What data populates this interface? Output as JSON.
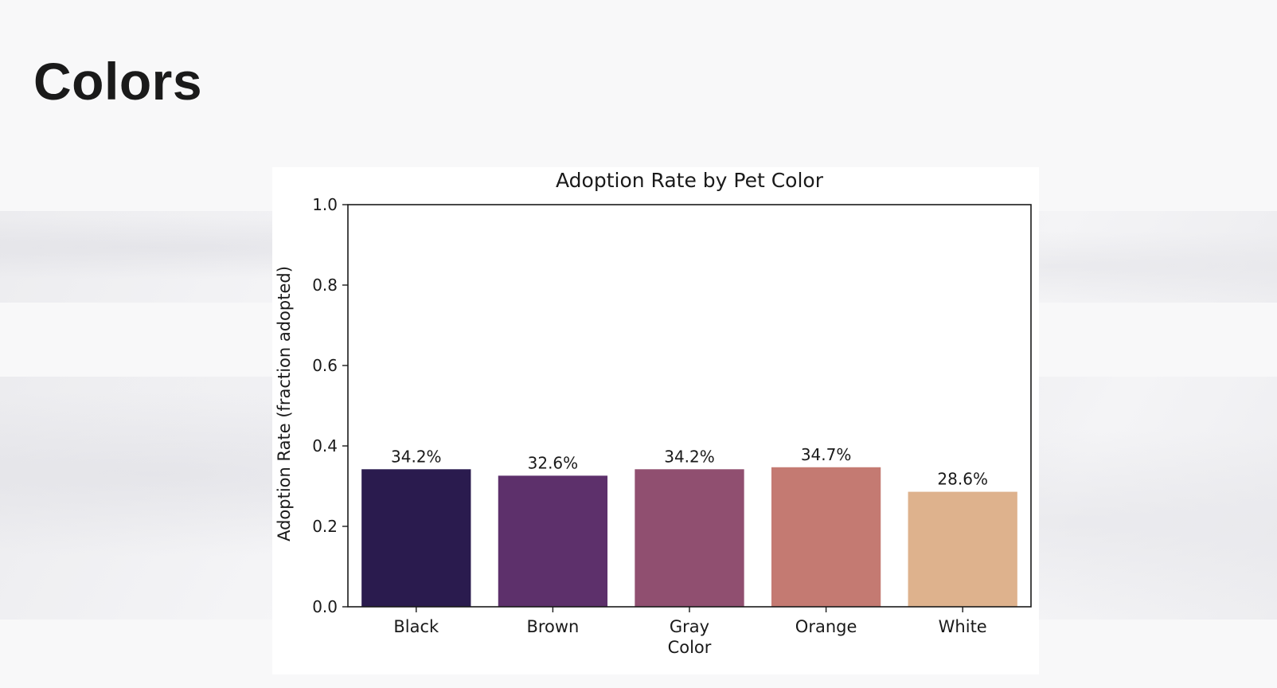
{
  "page": {
    "title": "Colors"
  },
  "chart_data": {
    "type": "bar",
    "title": "Adoption Rate by Pet Color",
    "xlabel": "Color",
    "ylabel": "Adoption Rate (fraction adopted)",
    "categories": [
      "Black",
      "Brown",
      "Gray",
      "Orange",
      "White"
    ],
    "values": [
      0.342,
      0.326,
      0.342,
      0.347,
      0.286
    ],
    "value_labels": [
      "34.2%",
      "32.6%",
      "34.2%",
      "34.7%",
      "28.6%"
    ],
    "colors": [
      "#2a1b4e",
      "#5d306b",
      "#904f70",
      "#c47a72",
      "#deb28d"
    ],
    "ylim": [
      0,
      1.0
    ],
    "yticks": [
      "0.0",
      "0.2",
      "0.4",
      "0.6",
      "0.8",
      "1.0"
    ],
    "grid": false,
    "legend": "none"
  }
}
